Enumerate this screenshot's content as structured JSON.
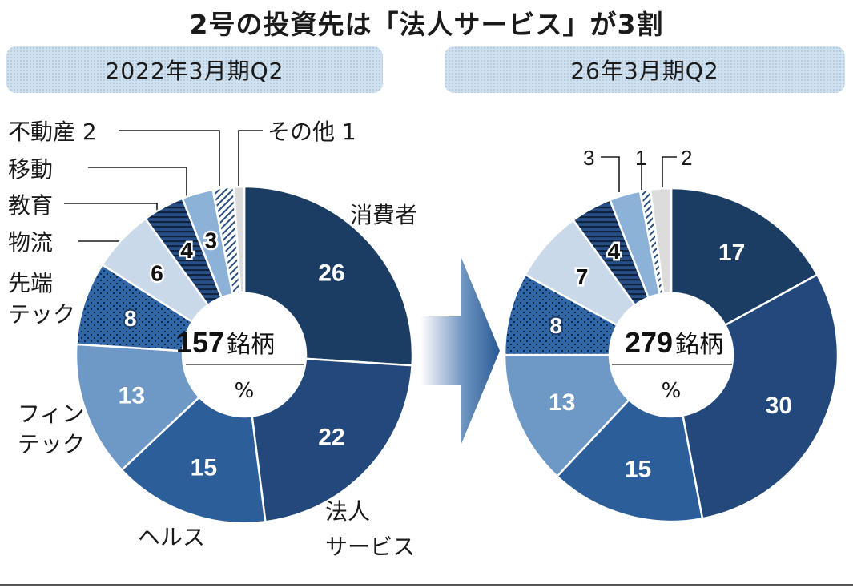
{
  "title": "2号の投資先は「法人サービス」が3割",
  "chart_data": [
    {
      "type": "pie",
      "period_label": "2022年3月期Q2",
      "center_count": "157",
      "center_unit": "銘柄",
      "center_sub": "%",
      "slices": [
        {
          "label": "消費者",
          "value": 26,
          "fill": "navy"
        },
        {
          "label": "法人サービス",
          "value": 22,
          "fill": "blue"
        },
        {
          "label": "ヘルス",
          "value": 15,
          "fill": "mid"
        },
        {
          "label": "フィンテック",
          "value": 13,
          "fill": "light"
        },
        {
          "label": "先端テック",
          "value": 8,
          "fill": "dots"
        },
        {
          "label": "物流",
          "value": 6,
          "fill": "pale"
        },
        {
          "label": "教育",
          "value": 4,
          "fill": "hstripe"
        },
        {
          "label": "移動",
          "value": 3,
          "fill": "lightblue"
        },
        {
          "label": "不動産",
          "value": 2,
          "fill": "diag"
        },
        {
          "label": "その他",
          "value": 1,
          "fill": "grey"
        }
      ]
    },
    {
      "type": "pie",
      "period_label": "26年3月期Q2",
      "center_count": "279",
      "center_unit": "銘柄",
      "center_sub": "%",
      "slices": [
        {
          "label": "消費者",
          "value": 17,
          "fill": "navy"
        },
        {
          "label": "法人サービス",
          "value": 30,
          "fill": "blue"
        },
        {
          "label": "ヘルス",
          "value": 15,
          "fill": "mid"
        },
        {
          "label": "フィンテック",
          "value": 13,
          "fill": "light"
        },
        {
          "label": "先端テック",
          "value": 8,
          "fill": "dots"
        },
        {
          "label": "物流",
          "value": 7,
          "fill": "pale"
        },
        {
          "label": "教育",
          "value": 4,
          "fill": "hstripe"
        },
        {
          "label": "移動",
          "value": 3,
          "fill": "lightblue"
        },
        {
          "label": "不動産",
          "value": 1,
          "fill": "diag"
        },
        {
          "label": "その他",
          "value": 2,
          "fill": "grey"
        }
      ]
    }
  ],
  "left_labels": {
    "consumer": "消費者",
    "corporate_line1": "法人",
    "corporate_line2": "サービス",
    "health": "ヘルス",
    "fintech_line1": "フィン",
    "fintech_line2": "テック",
    "deeptech_line1": "先端",
    "deeptech_line2": "テック",
    "logistics": "物流",
    "education": "教育",
    "mobility": "移動",
    "realestate": "不動産 2",
    "others": "その他 1"
  },
  "right_labels": {
    "mobility": "3",
    "realestate": "1",
    "others": "2"
  },
  "colors": {
    "navy": "#1c3d63",
    "blue": "#23497c",
    "mid": "#2c5f99",
    "light": "#6e98c6",
    "dots_bg": "#2f67a8",
    "pale": "#c9d9ea",
    "stripe_bg": "#274f86",
    "lightblue": "#8db2d8",
    "diag_bg": "#ffffff",
    "grey": "#dcdcdc",
    "arrow": "#2a5a95"
  }
}
